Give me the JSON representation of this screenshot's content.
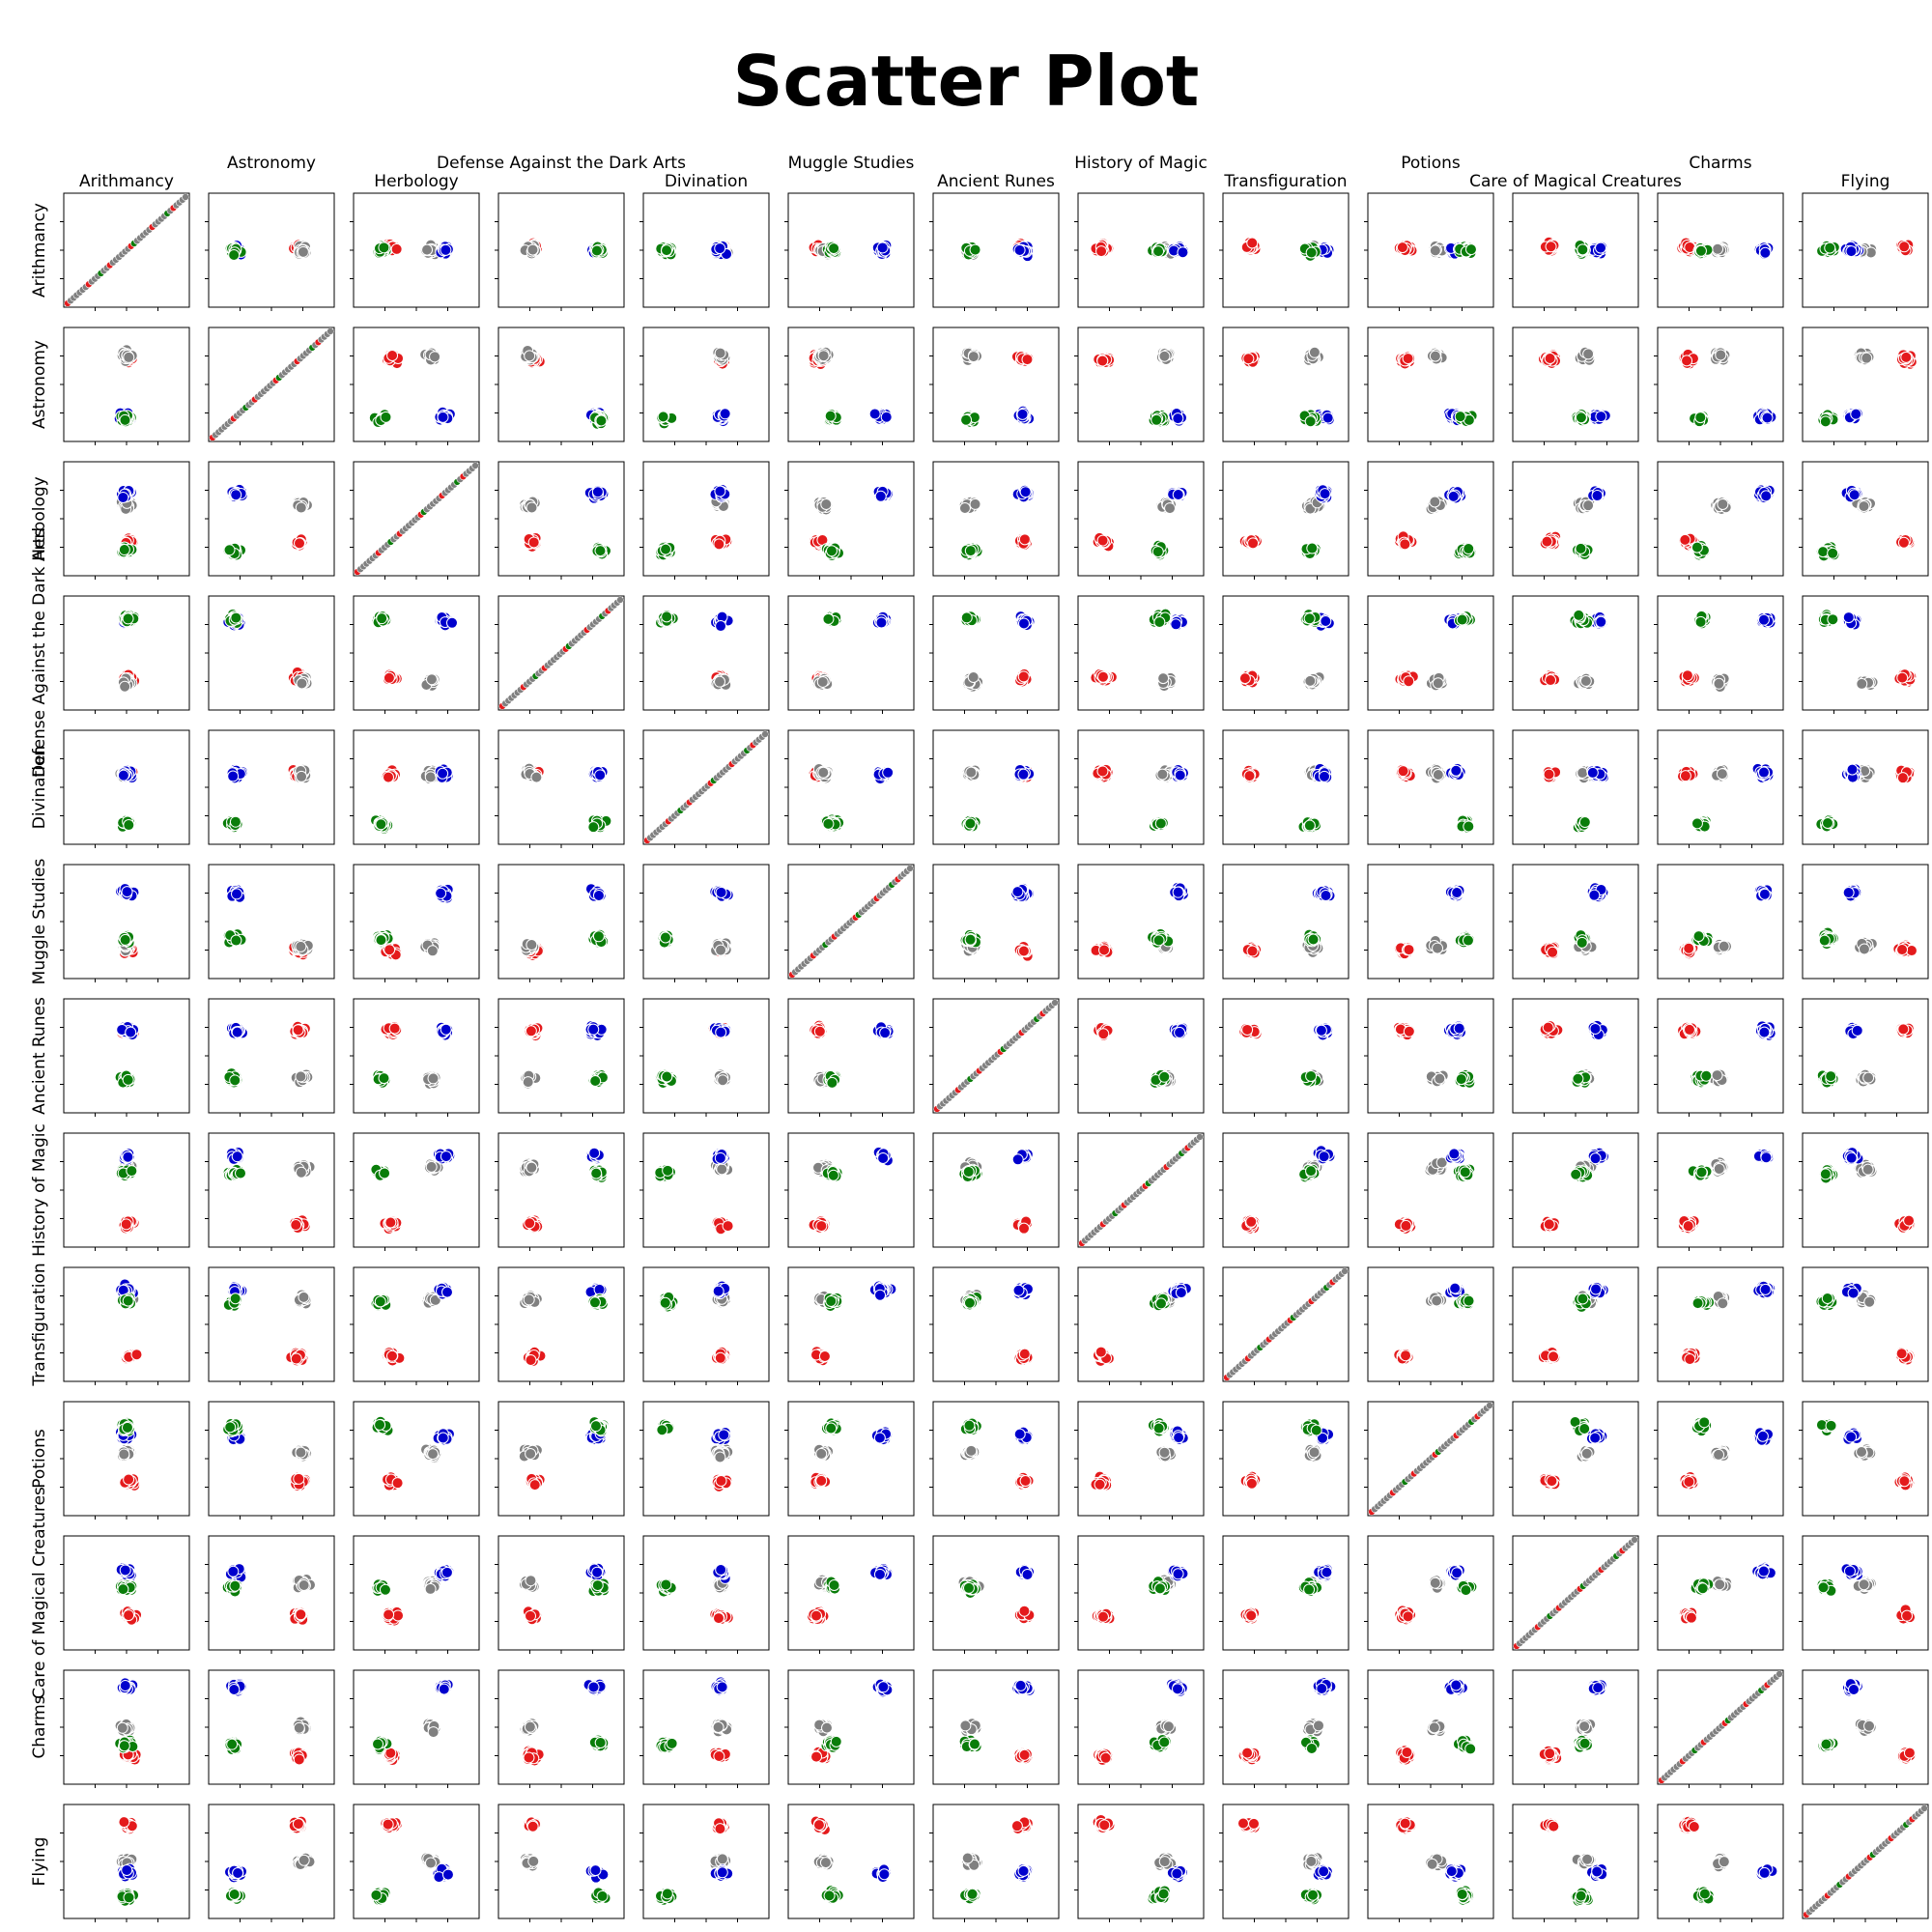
{
  "chart_data": {
    "type": "scatter",
    "layout": "pairplot",
    "title": "Scatter Plot",
    "variables": [
      "Arithmancy",
      "Astronomy",
      "Herbology",
      "Defense Against the Dark Arts",
      "Divination",
      "Muggle Studies",
      "Ancient Runes",
      "History of Magic",
      "Transfiguration",
      "Potions",
      "Care of Magical Creatures",
      "Charms",
      "Flying"
    ],
    "diagonal": "scatter of a variable against itself",
    "axis_ticks": "tick marks without tick labels",
    "grid": false,
    "legend": "none",
    "marker": "filled circle with white edge",
    "group_colors": [
      "#e41a1c",
      "#808080",
      "#0000cd",
      "#0a7d0a"
    ],
    "groups_per_variable": {
      "Arithmancy": {
        "#e41a1c": 0.52,
        "#808080": 0.5,
        "#0000cd": 0.5,
        "#0a7d0a": 0.5
      },
      "Astronomy": {
        "#e41a1c": 0.72,
        "#808080": 0.75,
        "#0000cd": 0.22,
        "#0a7d0a": 0.2
      },
      "Herbology": {
        "#e41a1c": 0.3,
        "#808080": 0.62,
        "#0000cd": 0.72,
        "#0a7d0a": 0.22
      },
      "Defense Against the Dark Arts": {
        "#e41a1c": 0.28,
        "#808080": 0.25,
        "#0000cd": 0.78,
        "#0a7d0a": 0.8
      },
      "Divination": {
        "#e41a1c": 0.62,
        "#808080": 0.62,
        "#0000cd": 0.62,
        "#0a7d0a": 0.18
      },
      "Muggle Studies": {
        "#e41a1c": 0.25,
        "#808080": 0.28,
        "#0000cd": 0.75,
        "#0a7d0a": 0.35
      },
      "Ancient Runes": {
        "#e41a1c": 0.72,
        "#808080": 0.3,
        "#0000cd": 0.72,
        "#0a7d0a": 0.3
      },
      "History of Magic": {
        "#e41a1c": 0.2,
        "#808080": 0.7,
        "#0000cd": 0.8,
        "#0a7d0a": 0.65
      },
      "Transfiguration": {
        "#e41a1c": 0.22,
        "#808080": 0.72,
        "#0000cd": 0.8,
        "#0a7d0a": 0.7
      },
      "Potions": {
        "#e41a1c": 0.3,
        "#808080": 0.55,
        "#0000cd": 0.7,
        "#0a7d0a": 0.78
      },
      "Care of Magical Creatures": {
        "#e41a1c": 0.3,
        "#808080": 0.58,
        "#0000cd": 0.68,
        "#0a7d0a": 0.55
      },
      "Charms": {
        "#e41a1c": 0.25,
        "#808080": 0.5,
        "#0000cd": 0.85,
        "#0a7d0a": 0.35
      },
      "Flying": {
        "#e41a1c": 0.82,
        "#808080": 0.5,
        "#0000cd": 0.4,
        "#0a7d0a": 0.2
      }
    },
    "points_per_group": 22
  }
}
